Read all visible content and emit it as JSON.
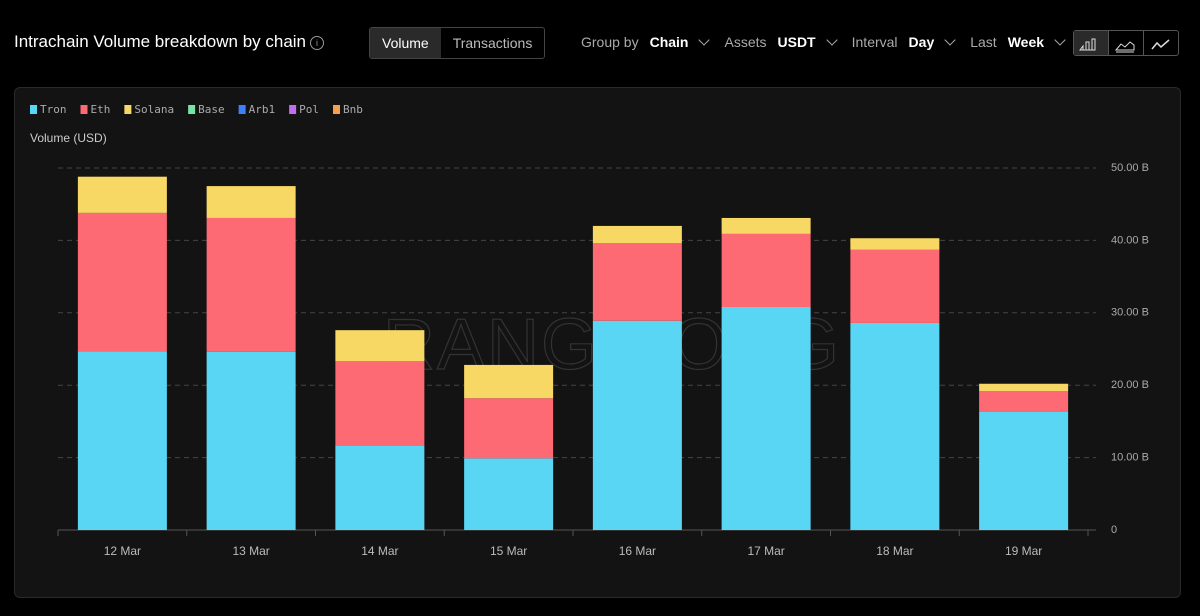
{
  "header": {
    "title": "Intrachain Volume breakdown by chain",
    "toggle": [
      "Volume",
      "Transactions"
    ],
    "filters": [
      {
        "label": "Group by",
        "value": "Chain"
      },
      {
        "label": "Assets",
        "value": "USDT"
      },
      {
        "label": "Interval",
        "value": "Day"
      },
      {
        "label": "Last",
        "value": "Week"
      }
    ]
  },
  "watermark": "RANGE.ORG",
  "chart_data": {
    "type": "stacked_bar",
    "ylabel": "Volume (USD)",
    "categories": [
      "12 Mar",
      "13 Mar",
      "14 Mar",
      "15 Mar",
      "16 Mar",
      "17 Mar",
      "18 Mar",
      "19 Mar"
    ],
    "series": [
      {
        "name": "Tron",
        "color": "#5ad6f5",
        "values": [
          24700000000,
          24600000000,
          11700000000,
          9900000000,
          28900000000,
          30800000000,
          28600000000,
          16300000000
        ]
      },
      {
        "name": "Eth",
        "color": "#fd6a74",
        "values": [
          19100000000,
          18500000000,
          11600000000,
          8300000000,
          10700000000,
          10100000000,
          10100000000,
          2900000000
        ]
      },
      {
        "name": "Solana",
        "color": "#f8d865",
        "values": [
          5000000000,
          4400000000,
          4300000000,
          4600000000,
          2400000000,
          2200000000,
          1600000000,
          1000000000
        ]
      },
      {
        "name": "Base",
        "color": "#79e2a6",
        "values": [
          0,
          0,
          0,
          0,
          0,
          0,
          0,
          0
        ]
      },
      {
        "name": "Arb1",
        "color": "#3b82f6",
        "values": [
          0,
          0,
          0,
          0,
          0,
          0,
          0,
          0
        ]
      },
      {
        "name": "Pol",
        "color": "#c26cf0",
        "values": [
          0,
          0,
          0,
          0,
          0,
          0,
          0,
          0
        ]
      },
      {
        "name": "Bnb",
        "color": "#f6a04d",
        "values": [
          0,
          0,
          0,
          0,
          0,
          0,
          0,
          0
        ]
      }
    ],
    "ylim": [
      0,
      50000000000
    ],
    "yticks": [
      0,
      {
        "value": 10000000000,
        "label": "10.00 B"
      },
      {
        "value": 20000000000,
        "label": "20.00 B"
      },
      {
        "value": 30000000000,
        "label": "30.00 B"
      },
      {
        "value": 40000000000,
        "label": "40.00 B"
      },
      {
        "value": 50000000000,
        "label": "50.00 B"
      }
    ],
    "grid": true
  }
}
